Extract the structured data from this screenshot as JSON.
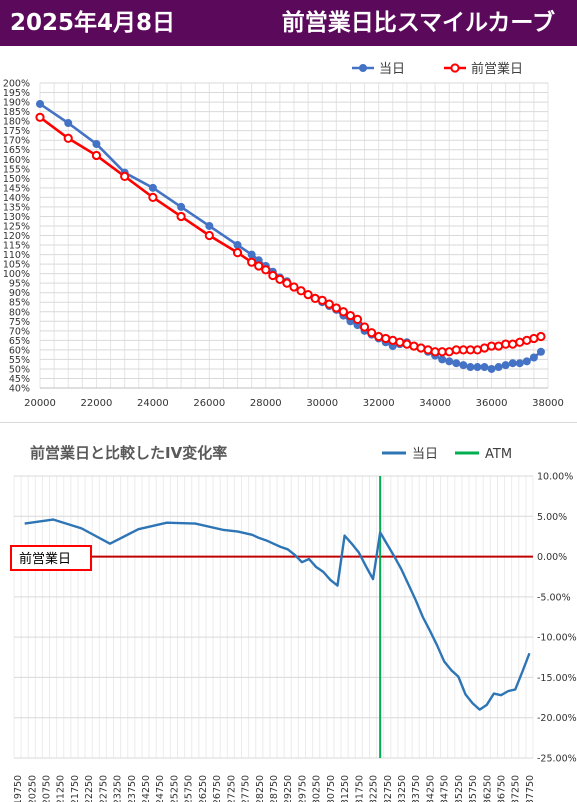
{
  "header": {
    "date": "2025年4月8日",
    "title": "前営業日比スマイルカーブ"
  },
  "colors": {
    "header_bg": "#5b0a5b",
    "today": "#4472c4",
    "prev": "#ff0000",
    "change": "#2e75b6",
    "atm": "#00b050",
    "zero_line": "#c00000"
  },
  "chart_data": [
    {
      "type": "line",
      "xlim": [
        20000,
        38000
      ],
      "ylim": [
        40,
        200
      ],
      "x_ticks": [
        20000,
        22000,
        24000,
        26000,
        28000,
        30000,
        32000,
        34000,
        36000,
        38000
      ],
      "y_ticks": [
        "40%",
        "45%",
        "50%",
        "55%",
        "60%",
        "65%",
        "70%",
        "75%",
        "80%",
        "85%",
        "90%",
        "95%",
        "100%",
        "105%",
        "110%",
        "115%",
        "120%",
        "125%",
        "130%",
        "135%",
        "140%",
        "145%",
        "150%",
        "155%",
        "160%",
        "165%",
        "170%",
        "175%",
        "180%",
        "185%",
        "190%",
        "195%",
        "200%"
      ],
      "legend": [
        "当日",
        "前営業日"
      ],
      "series": [
        {
          "name": "当日",
          "x": [
            20000,
            21000,
            22000,
            23000,
            24000,
            25000,
            26000,
            27000,
            27500,
            27750,
            28000,
            28250,
            28500,
            28750,
            29000,
            29250,
            29500,
            29750,
            30000,
            30250,
            30500,
            30750,
            31000,
            31250,
            31500,
            31750,
            32000,
            32250,
            32500,
            32750,
            33000,
            33250,
            33500,
            33750,
            34000,
            34250,
            34500,
            34750,
            35000,
            35250,
            35500,
            35750,
            36000,
            36250,
            36500,
            36750,
            37000,
            37250,
            37500,
            37750
          ],
          "values": [
            189,
            179,
            168,
            153,
            145,
            135,
            125,
            115,
            110,
            107,
            104,
            101,
            98,
            96,
            93,
            91,
            89,
            87,
            85,
            83,
            81,
            78,
            75,
            73,
            70,
            68,
            66,
            64,
            62,
            63,
            64,
            62,
            61,
            59,
            57,
            55,
            54,
            53,
            52,
            51,
            51,
            51,
            50,
            51,
            52,
            53,
            53,
            54,
            56,
            59
          ]
        },
        {
          "name": "前営業日",
          "x": [
            20000,
            21000,
            22000,
            23000,
            24000,
            25000,
            26000,
            27000,
            27500,
            27750,
            28000,
            28250,
            28500,
            28750,
            29000,
            29250,
            29500,
            29750,
            30000,
            30250,
            30500,
            30750,
            31000,
            31250,
            31500,
            31750,
            32000,
            32250,
            32500,
            32750,
            33000,
            33250,
            33500,
            33750,
            34000,
            34250,
            34500,
            34750,
            35000,
            35250,
            35500,
            35750,
            36000,
            36250,
            36500,
            36750,
            37000,
            37250,
            37500,
            37750
          ],
          "values": [
            182,
            171,
            162,
            151,
            140,
            130,
            120,
            111,
            106,
            104,
            102,
            99,
            97,
            95,
            93,
            91,
            89,
            87,
            86,
            84,
            82,
            80,
            78,
            76,
            72,
            69,
            67,
            66,
            65,
            64,
            63,
            62,
            61,
            60,
            59,
            59,
            59,
            60,
            60,
            60,
            60,
            61,
            62,
            62,
            63,
            63,
            64,
            65,
            66,
            67
          ]
        }
      ]
    },
    {
      "type": "line",
      "title": "前営業日と比較したIV変化率",
      "legend": [
        "当日",
        "ATM"
      ],
      "ylim": [
        -25,
        10
      ],
      "y_ticks": [
        "10.00%",
        "5.00%",
        "0.00%",
        "-5.00%",
        "-10.00%",
        "-15.00%",
        "-20.00%",
        "-25.00%"
      ],
      "categories": [
        19750,
        20000,
        20250,
        20500,
        20750,
        21000,
        21250,
        21500,
        21750,
        22000,
        22250,
        22500,
        22750,
        23000,
        23250,
        23500,
        23750,
        24000,
        24250,
        24500,
        24750,
        25000,
        25250,
        25500,
        25750,
        26000,
        26250,
        26500,
        26750,
        27000,
        27250,
        27500,
        27750,
        28000,
        28250,
        28500,
        28750,
        29000,
        29250,
        29500,
        29750,
        30000,
        30250,
        30500,
        30750,
        31000,
        31250,
        31500,
        31750,
        32000,
        32250,
        32500,
        32750,
        33000,
        33250,
        33500,
        33750,
        34000,
        34250,
        34500,
        34750,
        35000,
        35250,
        35500,
        35750,
        36000,
        36250,
        36500,
        36750,
        37000,
        37250,
        37500,
        37750
      ],
      "x_tick_labels": [
        "19750",
        "20250",
        "20750",
        "21250",
        "21750",
        "22250",
        "22750",
        "23250",
        "23750",
        "24250",
        "24750",
        "25250",
        "25750",
        "26250",
        "26750",
        "27250",
        "27750",
        "28250",
        "28750",
        "29250",
        "29750",
        "30250",
        "30750",
        "31250",
        "31750",
        "32250",
        "32750",
        "33250",
        "33750",
        "34250",
        "34750",
        "35250",
        "35750",
        "36250",
        "36750",
        "37250",
        "37750"
      ],
      "series": [
        {
          "name": "当日",
          "x": [
            20000,
            21000,
            22000,
            23000,
            24000,
            25000,
            26000,
            27000,
            27500,
            28000,
            28250,
            28500,
            28750,
            29000,
            29250,
            29500,
            29750,
            30000,
            30250,
            30500,
            30750,
            31000,
            31250,
            31500,
            31750,
            32000,
            32250,
            32500,
            32750,
            33000,
            33250,
            33500,
            33750,
            34000,
            34250,
            34500,
            34750,
            35000,
            35250,
            35500,
            35750,
            36000,
            36250,
            36500,
            36750,
            37000,
            37250,
            37500,
            37750
          ],
          "values": [
            4.1,
            4.6,
            3.5,
            1.6,
            3.4,
            4.2,
            4.1,
            3.3,
            3.1,
            2.7,
            2.3,
            2.0,
            1.6,
            1.2,
            0.9,
            0.2,
            -0.7,
            -0.3,
            -1.3,
            -1.9,
            -2.9,
            -3.6,
            2.6,
            1.6,
            0.5,
            -1.2,
            -2.8,
            3.0,
            1.5,
            0.0,
            -1.6,
            -3.5,
            -5.4,
            -7.5,
            -9.2,
            -11.0,
            -13.0,
            -14.1,
            -14.9,
            -17.1,
            -18.2,
            -19.0,
            -18.4,
            -17.0,
            -17.2,
            -16.7,
            -16.5,
            -14.3,
            -12.0
          ]
        }
      ],
      "atm": 32500,
      "reference": {
        "label": "前営業日",
        "value": 0
      }
    }
  ]
}
